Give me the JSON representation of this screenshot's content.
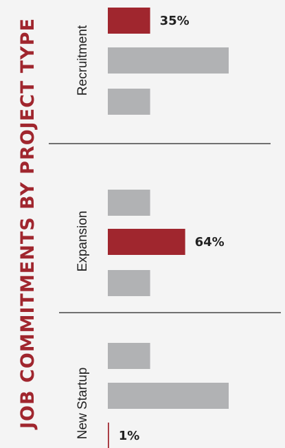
{
  "colors": {
    "highlight": "#a0262e",
    "bar": "#b1b2b4",
    "title": "#a0262e",
    "text": "#222222",
    "divider": "#222222"
  },
  "chart_data": {
    "type": "bar",
    "orientation": "horizontal",
    "title": "JOB COMMITMENTS BY PROJECT TYPE",
    "xlim": [
      0,
      100
    ],
    "grid": false,
    "groups": [
      {
        "name": "Recruitment",
        "bars": [
          {
            "value": 35,
            "label": "35%",
            "highlight": true
          },
          {
            "value": 100,
            "label": "",
            "highlight": false
          },
          {
            "value": 35,
            "label": "",
            "highlight": false
          }
        ]
      },
      {
        "name": "Expansion",
        "bars": [
          {
            "value": 35,
            "label": "",
            "highlight": false
          },
          {
            "value": 64,
            "label": "64%",
            "highlight": true
          },
          {
            "value": 35,
            "label": "",
            "highlight": false
          }
        ]
      },
      {
        "name": "New Startup",
        "bars": [
          {
            "value": 35,
            "label": "",
            "highlight": false
          },
          {
            "value": 100,
            "label": "",
            "highlight": false
          },
          {
            "value": 1,
            "label": "1%",
            "highlight": true
          }
        ]
      }
    ]
  }
}
